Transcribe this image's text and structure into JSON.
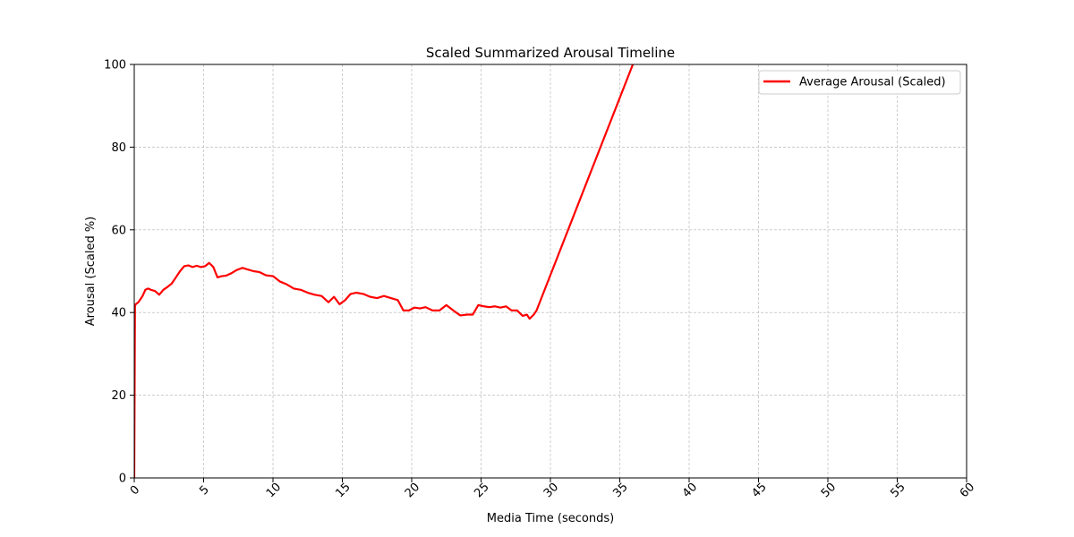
{
  "chart_data": {
    "type": "line",
    "title": "Scaled Summarized Arousal Timeline",
    "xlabel": "Media Time (seconds)",
    "ylabel": "Arousal (Scaled %)",
    "xlim": [
      0,
      60
    ],
    "ylim": [
      0,
      100
    ],
    "xticks": [
      0,
      5,
      10,
      15,
      20,
      25,
      30,
      35,
      40,
      45,
      50,
      55,
      60
    ],
    "yticks": [
      0,
      20,
      40,
      60,
      80,
      100
    ],
    "xtick_labels": [
      "0",
      "5",
      "10",
      "15",
      "20",
      "25",
      "30",
      "35",
      "40",
      "45",
      "50",
      "55",
      "60"
    ],
    "ytick_labels": [
      "0",
      "20",
      "40",
      "60",
      "80",
      "100"
    ],
    "xtick_rotation_deg": 45,
    "grid": true,
    "legend_position": "top-right",
    "series": [
      {
        "name": "Average Arousal (Scaled)",
        "color": "#ff0000",
        "x": [
          0,
          0.05,
          0.1,
          0.3,
          0.6,
          0.8,
          1.0,
          1.2,
          1.5,
          1.8,
          2.1,
          2.4,
          2.7,
          3.0,
          3.3,
          3.6,
          3.9,
          4.2,
          4.5,
          4.8,
          5.1,
          5.4,
          5.7,
          6.0,
          6.3,
          6.6,
          7.0,
          7.4,
          7.8,
          8.2,
          8.6,
          9.0,
          9.5,
          10.0,
          10.5,
          11.0,
          11.5,
          12.0,
          12.5,
          13.0,
          13.5,
          14.0,
          14.4,
          14.8,
          15.2,
          15.6,
          16.0,
          16.5,
          17.0,
          17.5,
          18.0,
          18.5,
          19.0,
          19.4,
          19.8,
          20.2,
          20.6,
          21.0,
          21.5,
          22.0,
          22.5,
          23.0,
          23.5,
          24.0,
          24.4,
          24.8,
          25.2,
          25.6,
          26.0,
          26.4,
          26.8,
          27.2,
          27.6,
          28.0,
          28.3,
          28.5,
          28.8,
          29.0,
          36.0
        ],
        "values": [
          0,
          41.5,
          42.0,
          42.5,
          44.0,
          45.5,
          45.8,
          45.5,
          45.2,
          44.3,
          45.5,
          46.2,
          47.0,
          48.5,
          50.0,
          51.2,
          51.4,
          51.0,
          51.3,
          51.0,
          51.2,
          52.0,
          51.0,
          48.5,
          48.8,
          48.9,
          49.5,
          50.3,
          50.8,
          50.4,
          50.0,
          49.8,
          49.0,
          48.8,
          47.5,
          46.8,
          45.8,
          45.5,
          44.8,
          44.3,
          44.0,
          42.5,
          43.8,
          42.0,
          43.0,
          44.5,
          44.8,
          44.5,
          43.8,
          43.5,
          44.0,
          43.5,
          43.0,
          40.5,
          40.5,
          41.2,
          41.0,
          41.3,
          40.5,
          40.5,
          41.8,
          40.5,
          39.3,
          39.5,
          39.5,
          41.8,
          41.5,
          41.3,
          41.5,
          41.2,
          41.5,
          40.5,
          40.5,
          39.2,
          39.5,
          38.5,
          39.5,
          40.5,
          100.5
        ]
      }
    ]
  }
}
